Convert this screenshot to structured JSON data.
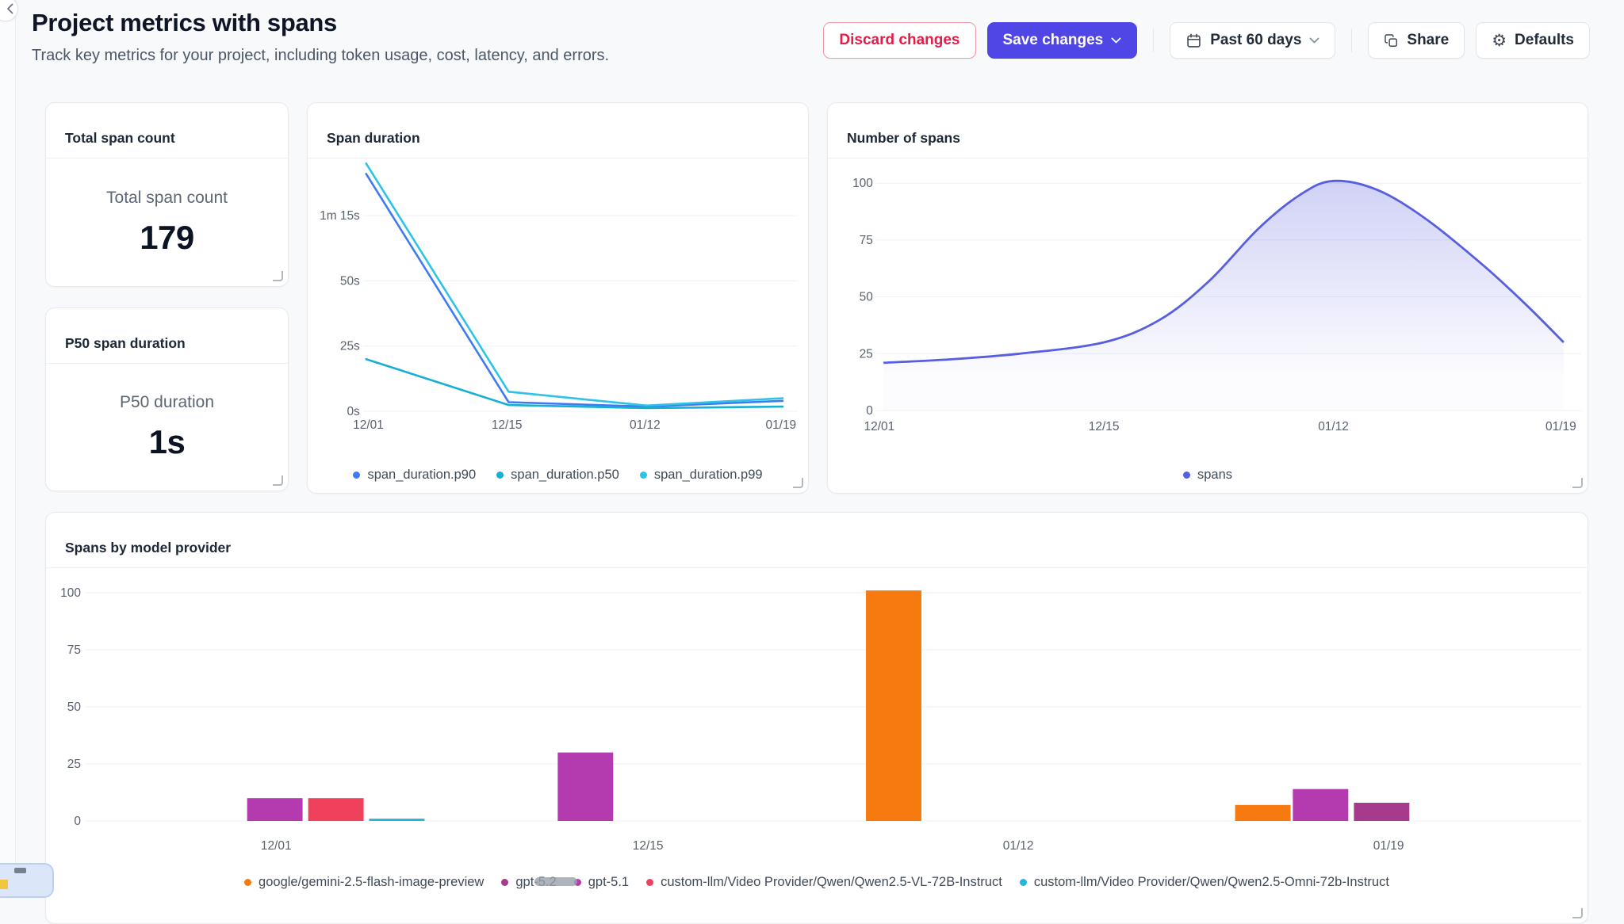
{
  "header": {
    "title": "Project metrics with spans",
    "subtitle": "Track key metrics for your project, including token usage, cost, latency, and errors.",
    "actions": {
      "discard": "Discard changes",
      "save": "Save changes",
      "date_range": "Past 60 days",
      "share": "Share",
      "defaults": "Defaults"
    }
  },
  "kpis": [
    {
      "title": "Total span count",
      "label": "Total span count",
      "value": "179"
    },
    {
      "title": "P50 span duration",
      "label": "P50 duration",
      "value": "1s"
    }
  ],
  "chart_data": [
    {
      "type": "line",
      "title": "Span duration",
      "unit": "seconds",
      "grid": true,
      "legend_position": "bottom",
      "x_tick_labels": [
        "12/01",
        "12/15",
        "01/12",
        "01/19"
      ],
      "y_ticks": [
        0,
        25,
        50,
        75
      ],
      "y_tick_labels": [
        "0s",
        "25s",
        "50s",
        "1m 15s"
      ],
      "ylim": [
        0,
        100
      ],
      "series": [
        {
          "name": "span_duration.p90",
          "color": "#3e7bf0",
          "points": [
            [
              0,
              91
            ],
            [
              0.33,
              3.5
            ],
            [
              0.65,
              1.8
            ],
            [
              0.965,
              4
            ]
          ]
        },
        {
          "name": "span_duration.p50",
          "color": "#17afd3",
          "points": [
            [
              0,
              20
            ],
            [
              0.33,
              2.4
            ],
            [
              0.65,
              1.2
            ],
            [
              0.965,
              1.8
            ]
          ]
        },
        {
          "name": "span_duration.p99",
          "color": "#2cc3e6",
          "points": [
            [
              0,
              95
            ],
            [
              0.33,
              7.5
            ],
            [
              0.65,
              2.2
            ],
            [
              0.965,
              5
            ]
          ]
        }
      ]
    },
    {
      "type": "area",
      "title": "Number of spans",
      "grid": true,
      "legend_position": "bottom",
      "x_tick_labels": [
        "12/01",
        "12/15",
        "01/12",
        "01/19"
      ],
      "y_ticks": [
        0,
        25,
        50,
        75,
        100
      ],
      "ylim": [
        0,
        107
      ],
      "series": [
        {
          "name": "spans",
          "color": "#575ee0",
          "points": [
            [
              0.006,
              21
            ],
            [
              0.1,
              22.5
            ],
            [
              0.2,
              25
            ],
            [
              0.32,
              30
            ],
            [
              0.4,
              40
            ],
            [
              0.47,
              57
            ],
            [
              0.54,
              80
            ],
            [
              0.6,
              95
            ],
            [
              0.647,
              101
            ],
            [
              0.71,
              97
            ],
            [
              0.78,
              84
            ],
            [
              0.86,
              64
            ],
            [
              0.92,
              47
            ],
            [
              0.975,
              30
            ]
          ]
        }
      ]
    },
    {
      "type": "bar",
      "title": "Spans by model provider",
      "grid": true,
      "legend_position": "bottom",
      "x_tick_labels": [
        "12/01",
        "12/15",
        "01/12",
        "01/19"
      ],
      "y_ticks": [
        0,
        25,
        50,
        75,
        100
      ],
      "ylim": [
        0,
        104
      ],
      "legend": [
        {
          "name": "google/gemini-2.5-flash-image-preview",
          "color": "#f77a10"
        },
        {
          "name": "gpt-5.2",
          "color": "#a63a8c"
        },
        {
          "name": "gpt-5.1",
          "color": "#b43ab0"
        },
        {
          "name": "custom-llm/Video Provider/Qwen/Qwen2.5-VL-72B-Instruct",
          "color": "#f0415c"
        },
        {
          "name": "custom-llm/Video Provider/Qwen/Qwen2.5-Omni-72b-Instruct",
          "color": "#27b5d6"
        }
      ],
      "bars": [
        {
          "date": "12/01",
          "series": "gpt-5.1",
          "value": 10,
          "f": 0.1066
        },
        {
          "date": "12/01",
          "series": "custom-llm/Video Provider/Qwen/Qwen2.5-VL-72B-Instruct",
          "value": 10,
          "f": 0.1475
        },
        {
          "date": "12/01",
          "series": "custom-llm/Video Provider/Qwen/Qwen2.5-Omni-72b-Instruct",
          "value": 1,
          "f": 0.1883
        },
        {
          "date": "12/15",
          "series": "gpt-5.1",
          "value": 30,
          "f": 0.3146
        },
        {
          "date": "01/12",
          "series": "google/gemini-2.5-flash-image-preview",
          "value": 101,
          "f": 0.521
        },
        {
          "date": "01/19",
          "series": "google/gemini-2.5-flash-image-preview",
          "value": 7,
          "f": 0.7682
        },
        {
          "date": "01/19",
          "series": "gpt-5.1",
          "value": 14,
          "f": 0.8069
        },
        {
          "date": "01/19",
          "series": "gpt-5.2",
          "value": 8,
          "f": 0.8478
        }
      ]
    }
  ]
}
